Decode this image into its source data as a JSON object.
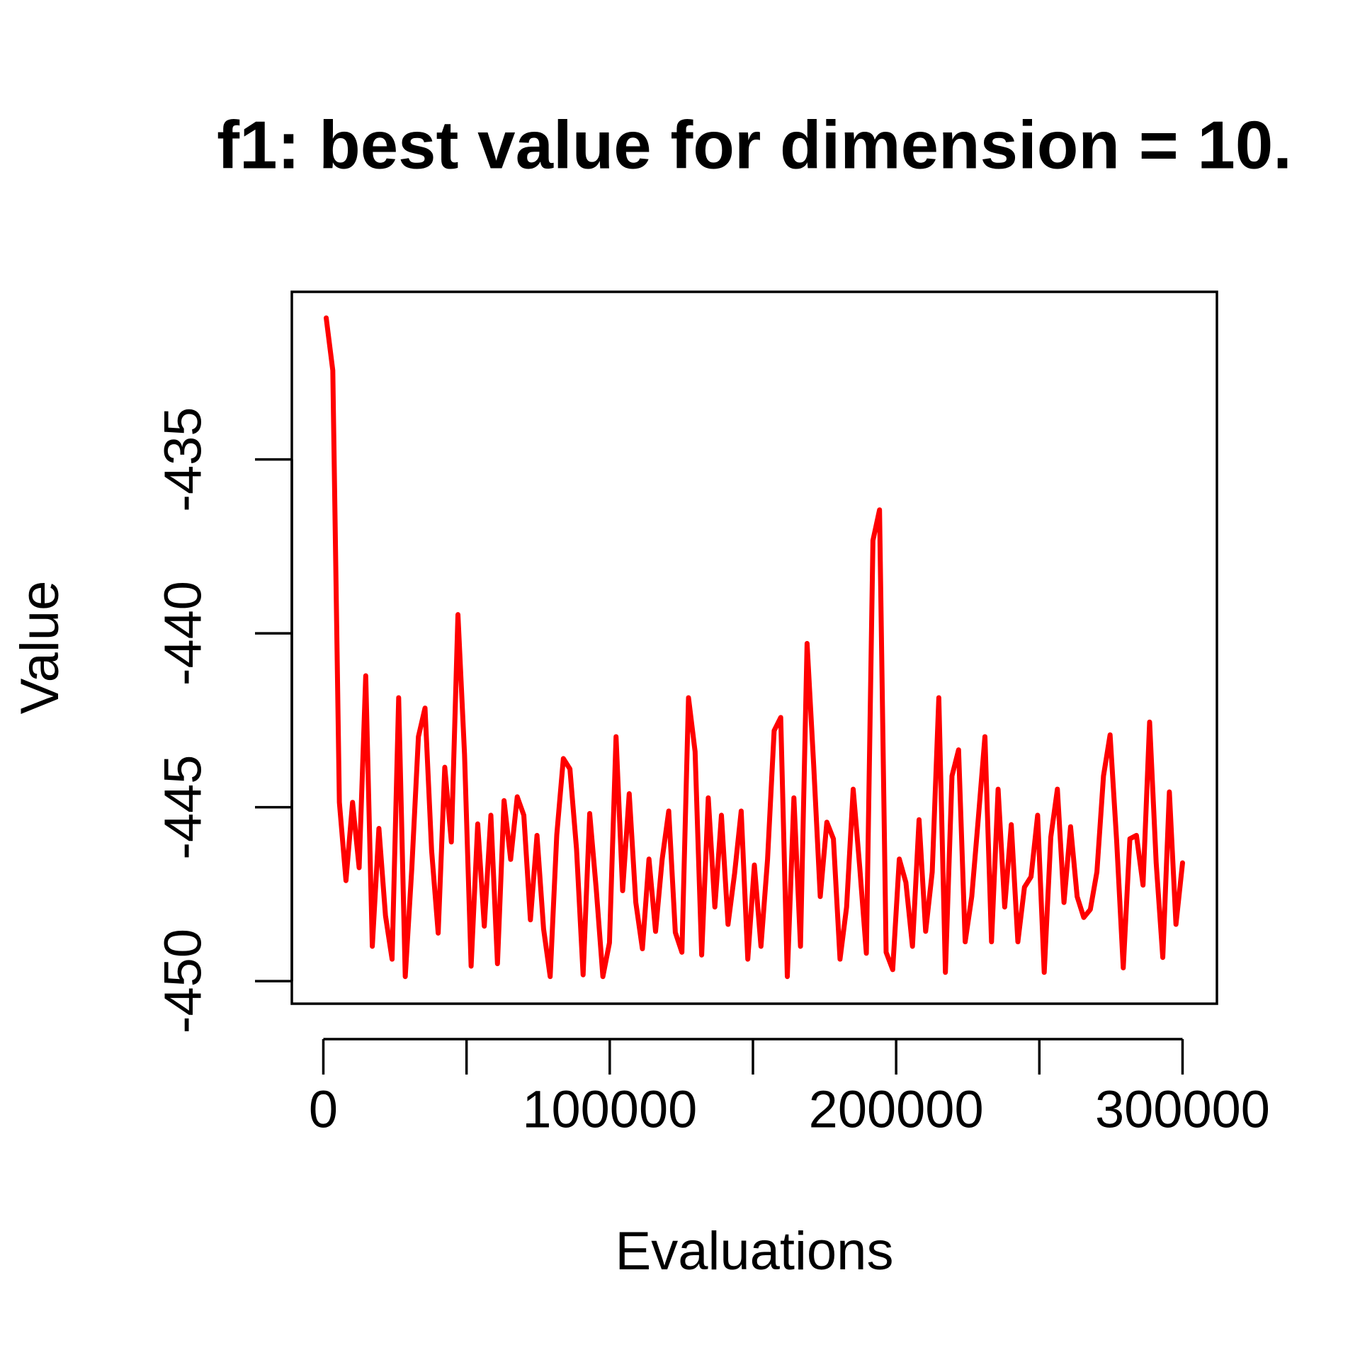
{
  "chart_data": {
    "type": "line",
    "title": "f1: best value for dimension = 10.",
    "x_label": "Evaluations",
    "y_label": "Value",
    "x": [
      1000,
      3300,
      5600,
      7900,
      10200,
      12500,
      14800,
      17100,
      19400,
      21700,
      24000,
      26300,
      28600,
      30900,
      33200,
      35500,
      37800,
      40100,
      42400,
      44700,
      47000,
      49300,
      51600,
      53900,
      56200,
      58500,
      60800,
      63100,
      65400,
      67700,
      70000,
      72300,
      74600,
      76900,
      79200,
      81500,
      83800,
      86100,
      88400,
      90700,
      93000,
      95300,
      97600,
      99900,
      102200,
      104500,
      106800,
      109100,
      111400,
      113700,
      116000,
      118300,
      120600,
      122900,
      125200,
      127500,
      129800,
      132100,
      134400,
      136700,
      139000,
      141300,
      143600,
      145900,
      148200,
      150500,
      152800,
      155100,
      157400,
      159700,
      162000,
      164300,
      166600,
      168900,
      171200,
      173500,
      175800,
      178100,
      180400,
      182700,
      185000,
      187300,
      189600,
      191900,
      194200,
      196500,
      198800,
      201100,
      203400,
      205700,
      208000,
      210300,
      212600,
      214900,
      217200,
      219500,
      221800,
      224100,
      226400,
      228700,
      231000,
      233300,
      235600,
      237900,
      240200,
      242500,
      244800,
      247100,
      249400,
      251700,
      254000,
      256300,
      258600,
      260900,
      263200,
      265500,
      267800,
      270100,
      272400,
      274700,
      277000,
      279300,
      281600,
      283900,
      286200,
      288500,
      290800,
      293100,
      295400,
      297700,
      300000
    ],
    "series": [
      {
        "color": "#ff0000",
        "values": [
          -430.93,
          -432.44,
          -444.86,
          -447.11,
          -444.86,
          -446.74,
          -441.22,
          -449.0,
          -445.61,
          -448.12,
          -449.37,
          -441.85,
          -449.87,
          -446.74,
          -442.97,
          -442.15,
          -446.24,
          -448.62,
          -443.85,
          -446.0,
          -439.46,
          -443.48,
          -449.57,
          -445.48,
          -448.42,
          -445.23,
          -449.5,
          -444.81,
          -446.5,
          -444.7,
          -445.23,
          -448.24,
          -445.81,
          -448.5,
          -449.87,
          -445.8,
          -443.6,
          -443.9,
          -446.2,
          -449.82,
          -445.18,
          -447.37,
          -449.87,
          -448.9,
          -442.97,
          -447.4,
          -444.61,
          -447.74,
          -449.07,
          -446.49,
          -448.57,
          -446.5,
          -445.11,
          -448.6,
          -449.17,
          -441.85,
          -443.4,
          -449.25,
          -444.73,
          -447.87,
          -445.23,
          -448.37,
          -446.9,
          -445.11,
          -449.37,
          -446.66,
          -449.0,
          -446.5,
          -442.8,
          -442.42,
          -449.87,
          -444.73,
          -449.0,
          -440.29,
          -443.78,
          -447.57,
          -445.43,
          -445.91,
          -449.37,
          -447.87,
          -444.48,
          -446.74,
          -449.2,
          -437.33,
          -436.45,
          -449.17,
          -449.67,
          -446.49,
          -447.16,
          -449.0,
          -445.36,
          -448.57,
          -446.86,
          -441.85,
          -449.75,
          -444.1,
          -443.35,
          -448.87,
          -447.57,
          -445.31,
          -442.97,
          -448.87,
          -444.48,
          -447.87,
          -445.5,
          -448.87,
          -447.3,
          -447.0,
          -445.23,
          -449.75,
          -445.86,
          -444.48,
          -447.74,
          -445.56,
          -447.57,
          -448.17,
          -447.94,
          -446.86,
          -444.1,
          -442.92,
          -445.98,
          -449.62,
          -445.91,
          -445.81,
          -447.24,
          -442.55,
          -446.61,
          -449.32,
          -444.56,
          -448.37,
          -446.6
        ]
      }
    ],
    "xlim": [
      -11000,
      312000
    ],
    "ylim": [
      -450.65,
      -430.18
    ],
    "xticks": [
      0,
      {
        "value": 50000,
        "label": null
      },
      100000,
      {
        "value": 150000,
        "label": null
      },
      200000,
      {
        "value": 250000,
        "label": null
      },
      300000
    ],
    "yticks": [
      -450,
      -445,
      -440,
      -435
    ]
  }
}
